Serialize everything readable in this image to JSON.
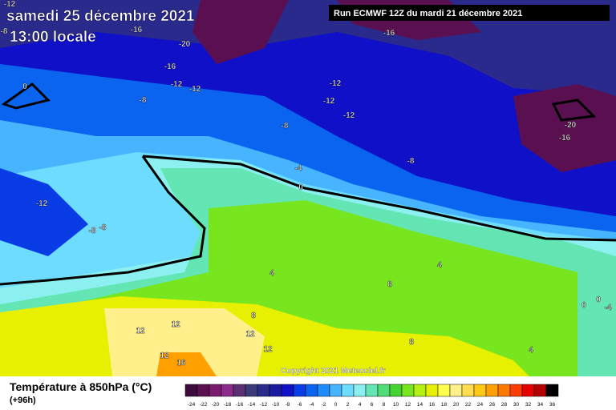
{
  "header": {
    "date": "samedi 25 décembre 2021",
    "time": "13:00 locale",
    "run": "Run ECMWF 12Z du mardi 21 décembre 2021"
  },
  "footer": {
    "title": "Température à 850hPa (°C)",
    "lead": "(+96h)",
    "copyright": "Copyright 2021 Meteociel.fr"
  },
  "legend": {
    "labels": [
      -24,
      -22,
      -20,
      -18,
      -16,
      -14,
      -12,
      -10,
      -8,
      -6,
      -4,
      -2,
      0,
      2,
      4,
      6,
      8,
      10,
      12,
      14,
      16,
      18,
      20,
      22,
      24,
      26,
      28,
      30,
      32,
      34,
      36
    ],
    "colors": [
      "#3c0a3c",
      "#5a1050",
      "#7a1a6e",
      "#8c2a8c",
      "#5a3070",
      "#3a3a7a",
      "#2a2a8c",
      "#1a1aa0",
      "#1010c8",
      "#0a3ce6",
      "#0a64f0",
      "#1e8cff",
      "#46b4ff",
      "#6edcff",
      "#8cf0f0",
      "#64e6b4",
      "#50dc78",
      "#46d232",
      "#78e61e",
      "#b4f014",
      "#e6f000",
      "#ffff50",
      "#fff08c",
      "#ffdc50",
      "#ffc814",
      "#ffa000",
      "#ff7800",
      "#ff3c00",
      "#e60000",
      "#b40000",
      "#000000"
    ]
  },
  "map": {
    "labels": [
      -12,
      -8,
      -16,
      -20,
      -16,
      -16,
      -12,
      -12,
      -8,
      0,
      -12,
      -12,
      -12,
      -8,
      -20,
      -16,
      -8,
      -4,
      0,
      -12,
      -8,
      -8,
      4,
      8,
      4,
      8,
      12,
      12,
      12,
      12,
      12,
      16,
      8,
      4,
      0,
      0,
      -4
    ]
  }
}
